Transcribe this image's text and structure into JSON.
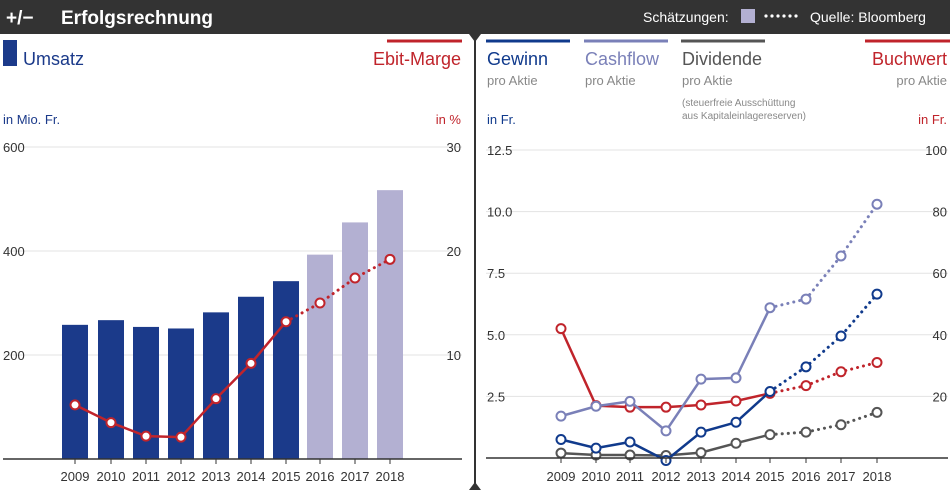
{
  "header": {
    "icon_label": "+/−",
    "title": "Erfolgsrechnung",
    "estimates_label": "Schätzungen:",
    "source": "Quelle: Bloomberg"
  },
  "colors": {
    "header_bg": "#333333",
    "umsatz": "#1b3a8a",
    "umsatz_estimate": "#b3b0d2",
    "ebit": "#c0242b",
    "gewinn": "#103a8c",
    "cashflow": "#7a80b8",
    "dividende": "#555555",
    "buchwert": "#c0242b",
    "grid": "#e3e3e3"
  },
  "chart_data": [
    {
      "type": "bar",
      "title": "Umsatz",
      "legend_right": "Ebit-Marge",
      "ylabel_left": "in Mio. Fr.",
      "ylabel_right": "in %",
      "categories": [
        "2009",
        "2010",
        "2011",
        "2012",
        "2013",
        "2014",
        "2015",
        "2016",
        "2017",
        "2018"
      ],
      "left_axis": {
        "ylim": [
          0,
          600
        ],
        "ticks": [
          200,
          400,
          600
        ]
      },
      "right_axis": {
        "ylim": [
          0,
          30
        ],
        "ticks": [
          10,
          20,
          30
        ]
      },
      "estimate_from_index": 7,
      "series": [
        {
          "name": "Umsatz",
          "type": "bar",
          "axis": "left",
          "values": [
            258,
            267,
            254,
            251,
            282,
            312,
            342,
            393,
            455,
            517
          ]
        },
        {
          "name": "Ebit-Marge",
          "type": "line",
          "axis": "right",
          "values": [
            5.2,
            3.5,
            2.2,
            2.1,
            5.8,
            9.2,
            13.2,
            15.0,
            17.4,
            19.2
          ]
        }
      ]
    },
    {
      "type": "line",
      "ylabel_left": "in Fr.",
      "ylabel_right": "in Fr.",
      "categories": [
        "2009",
        "2010",
        "2011",
        "2012",
        "2013",
        "2014",
        "2015",
        "2016",
        "2017",
        "2018"
      ],
      "left_axis": {
        "ylim": [
          0,
          12.5
        ],
        "ticks": [
          "2.5",
          "5.0",
          "7.5",
          "10.0",
          "12.5"
        ]
      },
      "right_axis": {
        "ylim": [
          0,
          100
        ],
        "ticks": [
          20,
          40,
          60,
          80,
          100
        ]
      },
      "estimate_from_index": 6,
      "series": [
        {
          "name": "Gewinn",
          "sub": "pro Aktie",
          "axis": "left",
          "values": [
            0.75,
            0.4,
            0.65,
            -0.1,
            1.05,
            1.45,
            2.7,
            3.7,
            4.95,
            6.65
          ]
        },
        {
          "name": "Cashflow",
          "sub": "pro Aktie",
          "axis": "left",
          "values": [
            1.7,
            2.1,
            2.3,
            1.1,
            3.2,
            3.25,
            6.1,
            6.45,
            8.2,
            10.3
          ]
        },
        {
          "name": "Dividende",
          "sub": "pro Aktie",
          "note": "(steuerfreie Ausschüttung\naus Kapitaleinlagereserven)",
          "axis": "left",
          "values": [
            0.2,
            0.12,
            0.12,
            0.1,
            0.22,
            0.6,
            0.95,
            1.05,
            1.35,
            1.85
          ]
        },
        {
          "name": "Buchwert",
          "sub": "pro Aktie",
          "axis": "right",
          "values": [
            42,
            17,
            16.5,
            16.5,
            17.2,
            18.5,
            21,
            23.5,
            28,
            31
          ]
        }
      ]
    }
  ]
}
